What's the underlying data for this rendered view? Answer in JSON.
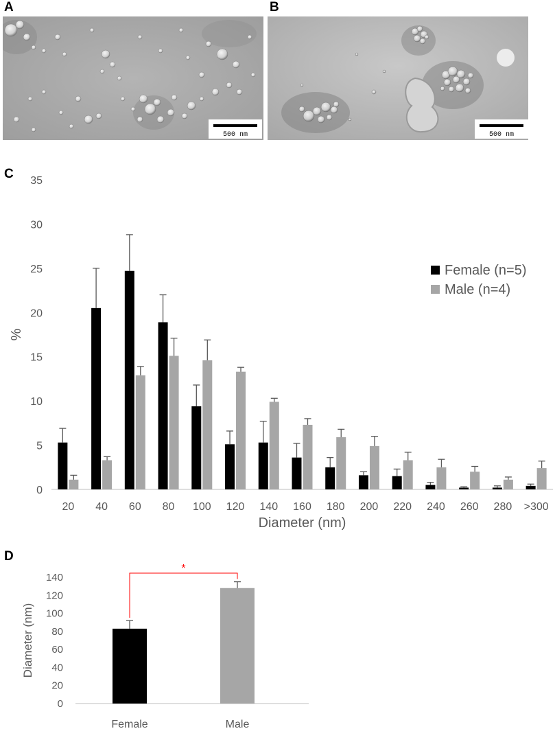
{
  "panels": {
    "a": {
      "letter": "A",
      "scale_bar": "500 nm"
    },
    "b": {
      "letter": "B",
      "scale_bar": "500 nm"
    },
    "c": {
      "letter": "C"
    },
    "d": {
      "letter": "D"
    }
  },
  "colors": {
    "female": "#000000",
    "male": "#a6a6a6",
    "significance": "#ff0000",
    "axis": "#595959",
    "error_bar": "#595959"
  },
  "chart_data": [
    {
      "type": "bar",
      "panel": "C",
      "categories": [
        "20",
        "40",
        "60",
        "80",
        "100",
        "120",
        "140",
        "160",
        "180",
        "200",
        "220",
        "240",
        "260",
        "280",
        ">300"
      ],
      "series": [
        {
          "name": "Female (n=5)",
          "values": [
            5.3,
            20.5,
            24.7,
            18.9,
            9.4,
            5.1,
            5.3,
            3.6,
            2.5,
            1.6,
            1.5,
            0.5,
            0.2,
            0.2,
            0.4
          ],
          "errors": [
            1.6,
            4.5,
            4.1,
            3.1,
            2.4,
            1.5,
            2.4,
            1.6,
            1.1,
            0.4,
            0.8,
            0.3,
            0.1,
            0.2,
            0.2
          ]
        },
        {
          "name": "Male (n=4)",
          "values": [
            1.1,
            3.3,
            12.9,
            15.1,
            14.6,
            13.3,
            9.9,
            7.3,
            5.9,
            4.9,
            3.3,
            2.5,
            2.0,
            1.1,
            2.4
          ],
          "errors": [
            0.5,
            0.4,
            1.0,
            2.0,
            2.3,
            0.5,
            0.4,
            0.7,
            0.9,
            1.1,
            0.9,
            0.9,
            0.6,
            0.3,
            0.8
          ]
        }
      ],
      "xlabel": "Diameter (nm)",
      "ylabel": "%",
      "ylim": [
        0,
        35
      ],
      "yticks": [
        "0",
        "5",
        "10",
        "15",
        "20",
        "25",
        "30",
        "35"
      ],
      "legend_placement": "right",
      "grid": false
    },
    {
      "type": "bar",
      "panel": "D",
      "categories": [
        "Female",
        "Male"
      ],
      "series": [
        {
          "values": [
            83,
            128
          ],
          "errors": [
            9,
            7
          ]
        }
      ],
      "xlabel": "",
      "ylabel": "Diameter (nm)",
      "ylim": [
        0,
        140
      ],
      "yticks": [
        "0",
        "20",
        "40",
        "60",
        "80",
        "100",
        "120",
        "140"
      ],
      "significance_marker": "*",
      "grid": false
    }
  ]
}
